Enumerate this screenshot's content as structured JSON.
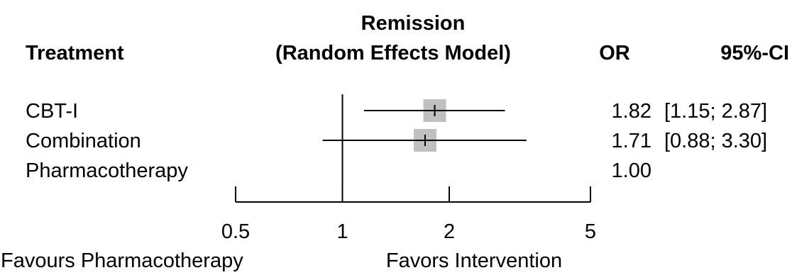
{
  "headers": {
    "treatment": "Treatment",
    "plot_title_line1": "Remission",
    "plot_title_line2": "(Random Effects Model)",
    "or": "OR",
    "ci": "95%-CI"
  },
  "chart_data": {
    "type": "forest",
    "scale": "log",
    "xlim": [
      0.5,
      5
    ],
    "ticks": [
      0.5,
      1,
      2,
      5
    ],
    "tick_labels": [
      "0.5",
      "1",
      "2",
      "5"
    ],
    "reference_line": 1,
    "rows": [
      {
        "label": "CBT-I",
        "or": 1.82,
        "lower": 1.15,
        "upper": 2.87,
        "or_text": "1.82",
        "ci_text": "[1.15; 2.87]"
      },
      {
        "label": "Combination",
        "or": 1.71,
        "lower": 0.88,
        "upper": 3.3,
        "or_text": "1.71",
        "ci_text": "[0.88; 3.30]"
      },
      {
        "label": "Pharmacotherapy",
        "or": 1.0,
        "lower": null,
        "upper": null,
        "or_text": "1.00",
        "ci_text": ""
      }
    ],
    "favours_left": "Favours Pharmacotherapy",
    "favours_right": "Favors Intervention",
    "colors": {
      "box": "#c0c0c0",
      "line": "#000000"
    }
  }
}
